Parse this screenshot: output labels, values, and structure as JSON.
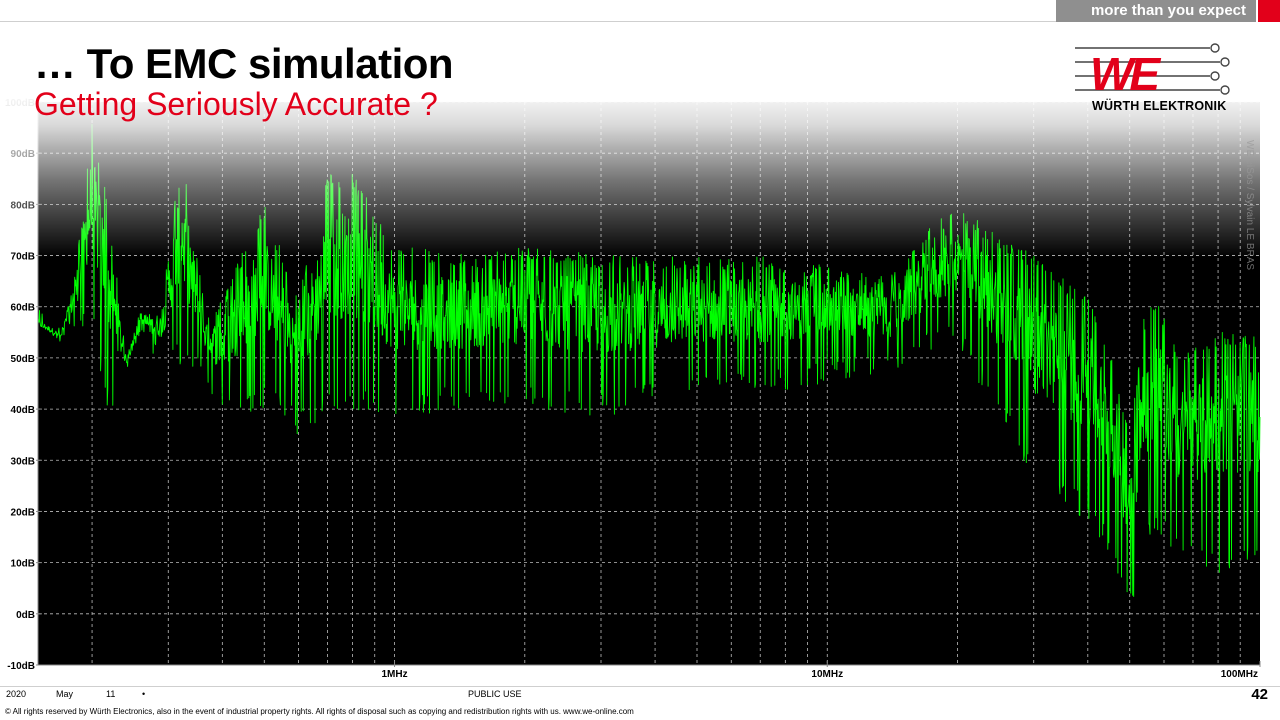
{
  "header": {
    "tagline": "more than you expect",
    "title": "… To EMC simulation",
    "subtitle": "Getting Seriously Accurate ?",
    "logo_text": "WÜRTH ELEKTRONIK",
    "logo_mark": "WE"
  },
  "watermarks": {
    "vertical": "WE-eiSos / Sylvain LE BRAS"
  },
  "colors": {
    "accent_red": "#e2001a",
    "trace_green": "#00ff00",
    "plot_background": "#000000",
    "grid": "#bdbdbd"
  },
  "chart_data": {
    "type": "line",
    "title": "",
    "xlabel": "",
    "ylabel": "",
    "x_scale": "log",
    "xlim": [
      150000,
      100000000
    ],
    "ylim": [
      -10,
      100
    ],
    "grid": true,
    "x_tick_labels": [
      {
        "value": 1000000,
        "label": "1MHz"
      },
      {
        "value": 10000000,
        "label": "10MHz"
      },
      {
        "value": 100000000,
        "label": "100MHz"
      }
    ],
    "y_tick_labels": [
      "100dB",
      "90dB",
      "80dB",
      "70dB",
      "60dB",
      "50dB",
      "40dB",
      "30dB",
      "20dB",
      "10dB",
      "0dB",
      "-10dB"
    ],
    "series": [
      {
        "color": "#00ff00",
        "envelope": {
          "freq_hz": [
            150000,
            170000,
            185000,
            200000,
            220000,
            240000,
            260000,
            290000,
            320000,
            370000,
            400000,
            500000,
            600000,
            700000,
            800000,
            1000000,
            1500000,
            2000000,
            3000000,
            5000000,
            7000000,
            10000000,
            14000000,
            17000000,
            20000000,
            25000000,
            30000000,
            40000000,
            46000000,
            50000000,
            54000000,
            58000000,
            65000000,
            80000000,
            100000000
          ],
          "upper_db": [
            58,
            55,
            70,
            97,
            78,
            50,
            60,
            60,
            92,
            58,
            62,
            80,
            62,
            86,
            86,
            72,
            70,
            72,
            70,
            70,
            70,
            68,
            66,
            75,
            80,
            74,
            70,
            62,
            50,
            36,
            58,
            62,
            50,
            55,
            55
          ],
          "lower_db": [
            55,
            53,
            55,
            55,
            38,
            48,
            52,
            50,
            48,
            45,
            38,
            40,
            35,
            38,
            40,
            38,
            40,
            40,
            38,
            42,
            42,
            45,
            46,
            50,
            52,
            38,
            25,
            18,
            10,
            0,
            12,
            15,
            10,
            8,
            10
          ]
        }
      }
    ]
  },
  "footer": {
    "year": "2020",
    "month": "May",
    "day": "11",
    "bullet": "•",
    "classification": "PUBLIC USE",
    "page_number": "42",
    "copyright": "© All rights reserved by Würth Electronics, also in the event of industrial property rights. All rights of disposal such as copying and redistribution rights with us. www.we-online.com"
  }
}
